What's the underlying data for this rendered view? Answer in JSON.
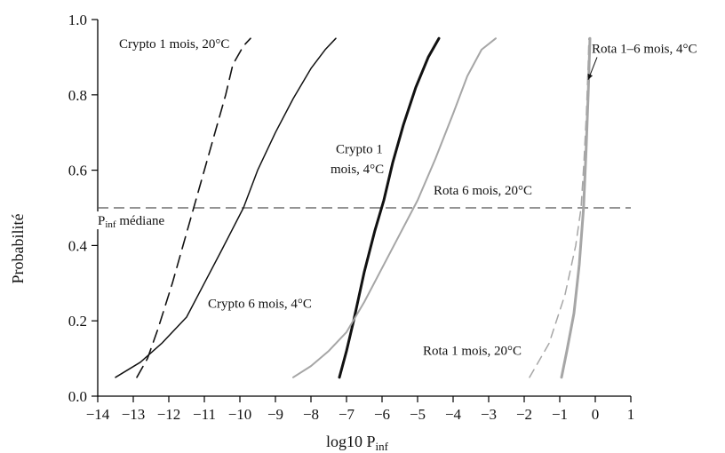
{
  "chart_data": {
    "type": "line",
    "xlabel": "log10 P",
    "xlabel_sub": "inf",
    "ylabel": "Probabilité",
    "xlim": [
      -14,
      1
    ],
    "ylim": [
      0,
      1
    ],
    "xticks": [
      -14,
      -13,
      -12,
      -11,
      -10,
      -9,
      -8,
      -7,
      -6,
      -5,
      -4,
      -3,
      -2,
      -1,
      0,
      1
    ],
    "yticks": [
      0.0,
      0.2,
      0.4,
      0.6,
      0.8,
      1.0
    ],
    "ytick_labels": [
      "0.0",
      "0.2",
      "0.4",
      "0.6",
      "0.8",
      "1.0"
    ],
    "grid": false,
    "series": [
      {
        "color": "#111111",
        "dash": "14,8",
        "width": 1.6,
        "points": [
          [
            -12.9,
            0.05
          ],
          [
            -12.6,
            0.1
          ],
          [
            -12.3,
            0.18
          ],
          [
            -11.9,
            0.3
          ],
          [
            -11.6,
            0.4
          ],
          [
            -11.3,
            0.5
          ],
          [
            -11.0,
            0.6
          ],
          [
            -10.7,
            0.7
          ],
          [
            -10.4,
            0.8
          ],
          [
            -10.2,
            0.88
          ],
          [
            -9.9,
            0.93
          ],
          [
            -9.7,
            0.95
          ]
        ]
      },
      {
        "color": "#111111",
        "dash": "",
        "width": 1.5,
        "points": [
          [
            -13.5,
            0.05
          ],
          [
            -12.8,
            0.09
          ],
          [
            -12.2,
            0.14
          ],
          [
            -11.5,
            0.21
          ],
          [
            -11.0,
            0.3
          ],
          [
            -10.5,
            0.39
          ],
          [
            -9.9,
            0.5
          ],
          [
            -9.5,
            0.6
          ],
          [
            -9.0,
            0.7
          ],
          [
            -8.5,
            0.79
          ],
          [
            -8.0,
            0.87
          ],
          [
            -7.6,
            0.92
          ],
          [
            -7.3,
            0.95
          ]
        ]
      },
      {
        "color": "#111111",
        "dash": "",
        "width": 3,
        "points": [
          [
            -7.2,
            0.05
          ],
          [
            -7.0,
            0.12
          ],
          [
            -6.8,
            0.2
          ],
          [
            -6.5,
            0.33
          ],
          [
            -6.2,
            0.44
          ],
          [
            -5.95,
            0.52
          ],
          [
            -5.7,
            0.62
          ],
          [
            -5.4,
            0.72
          ],
          [
            -5.05,
            0.82
          ],
          [
            -4.7,
            0.9
          ],
          [
            -4.4,
            0.95
          ]
        ]
      },
      {
        "color": "#a6a6a6",
        "dash": "",
        "width": 2,
        "points": [
          [
            -8.5,
            0.05
          ],
          [
            -8.0,
            0.08
          ],
          [
            -7.5,
            0.12
          ],
          [
            -7.0,
            0.17
          ],
          [
            -6.5,
            0.25
          ],
          [
            -6.0,
            0.34
          ],
          [
            -5.5,
            0.43
          ],
          [
            -5.0,
            0.52
          ],
          [
            -4.5,
            0.63
          ],
          [
            -4.0,
            0.75
          ],
          [
            -3.6,
            0.85
          ],
          [
            -3.2,
            0.92
          ],
          [
            -2.8,
            0.95
          ]
        ]
      },
      {
        "color": "#a6a6a6",
        "dash": "10,7",
        "width": 1.5,
        "points": [
          [
            -1.85,
            0.05
          ],
          [
            -1.3,
            0.14
          ],
          [
            -0.85,
            0.27
          ],
          [
            -0.55,
            0.4
          ],
          [
            -0.4,
            0.5
          ],
          [
            -0.32,
            0.62
          ],
          [
            -0.25,
            0.75
          ],
          [
            -0.2,
            0.88
          ],
          [
            -0.18,
            0.95
          ]
        ]
      },
      {
        "color": "#a6a6a6",
        "dash": "",
        "width": 3,
        "points": [
          [
            -0.95,
            0.05
          ],
          [
            -0.8,
            0.12
          ],
          [
            -0.6,
            0.22
          ],
          [
            -0.45,
            0.35
          ],
          [
            -0.33,
            0.5
          ],
          [
            -0.26,
            0.65
          ],
          [
            -0.2,
            0.8
          ],
          [
            -0.15,
            0.95
          ]
        ]
      }
    ],
    "reference_line": {
      "y": 0.5,
      "label": "P",
      "label_sub": "inf",
      "label_rest": " médiane",
      "color": "#555555"
    },
    "annotations": [
      {
        "text": "Crypto 1 mois, 20°C",
        "x": -13.4,
        "y": 0.925
      },
      {
        "text": "Crypto 1",
        "x": -7.3,
        "y": 0.645
      },
      {
        "text": "mois, 4°C",
        "x": -7.45,
        "y": 0.592
      },
      {
        "text": "Rota 6 mois, 20°C",
        "x": -4.55,
        "y": 0.535
      },
      {
        "text": "Crypto 6 mois, 4°C",
        "x": -10.9,
        "y": 0.235
      },
      {
        "text": "Rota 1 mois, 20°C",
        "x": -4.85,
        "y": 0.11
      },
      {
        "text": "Rota 1–6 mois, 4°C",
        "x": -0.1,
        "y": 0.912
      }
    ],
    "arrow": {
      "from": [
        0.05,
        0.9
      ],
      "to": [
        -0.2,
        0.84
      ]
    }
  }
}
